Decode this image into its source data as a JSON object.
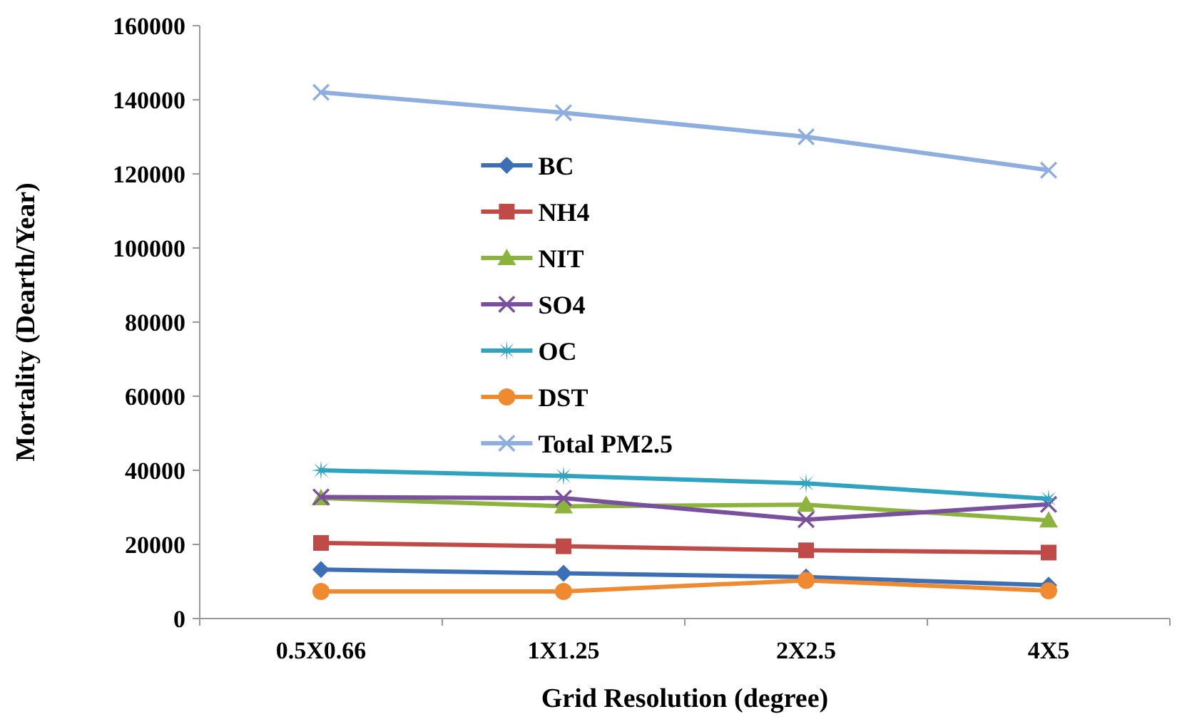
{
  "chart_data": {
    "type": "line",
    "xlabel": "Grid Resolution (degree)",
    "ylabel": "Mortality (Dearth/Year)",
    "categories": [
      "0.5X0.66",
      "1X1.25",
      "2X2.5",
      "4X5"
    ],
    "ylim": [
      0,
      160000
    ],
    "yticks": [
      0,
      20000,
      40000,
      60000,
      80000,
      100000,
      120000,
      140000,
      160000
    ],
    "grid": false,
    "legend": "top left",
    "series": [
      {
        "name": "BC",
        "color": "#3d6fb6",
        "marker": "diamond",
        "values": [
          13200,
          12200,
          11200,
          9000
        ]
      },
      {
        "name": "NH4",
        "color": "#be4b48",
        "marker": "square",
        "values": [
          20400,
          19500,
          18400,
          17800
        ]
      },
      {
        "name": "NIT",
        "color": "#8db33f",
        "marker": "triangle",
        "values": [
          32500,
          30300,
          30700,
          26500
        ]
      },
      {
        "name": "SO4",
        "color": "#7a4f9e",
        "marker": "cross",
        "values": [
          32800,
          32500,
          26700,
          30800
        ]
      },
      {
        "name": "OC",
        "color": "#2fa3c0",
        "marker": "star",
        "values": [
          40000,
          38500,
          36500,
          32300
        ]
      },
      {
        "name": "DST",
        "color": "#f08a31",
        "marker": "circle",
        "values": [
          7300,
          7300,
          10300,
          7500
        ]
      },
      {
        "name": "Total PM2.5",
        "color": "#8eaee0",
        "marker": "cross",
        "values": [
          142000,
          136500,
          130000,
          121000
        ]
      }
    ]
  }
}
